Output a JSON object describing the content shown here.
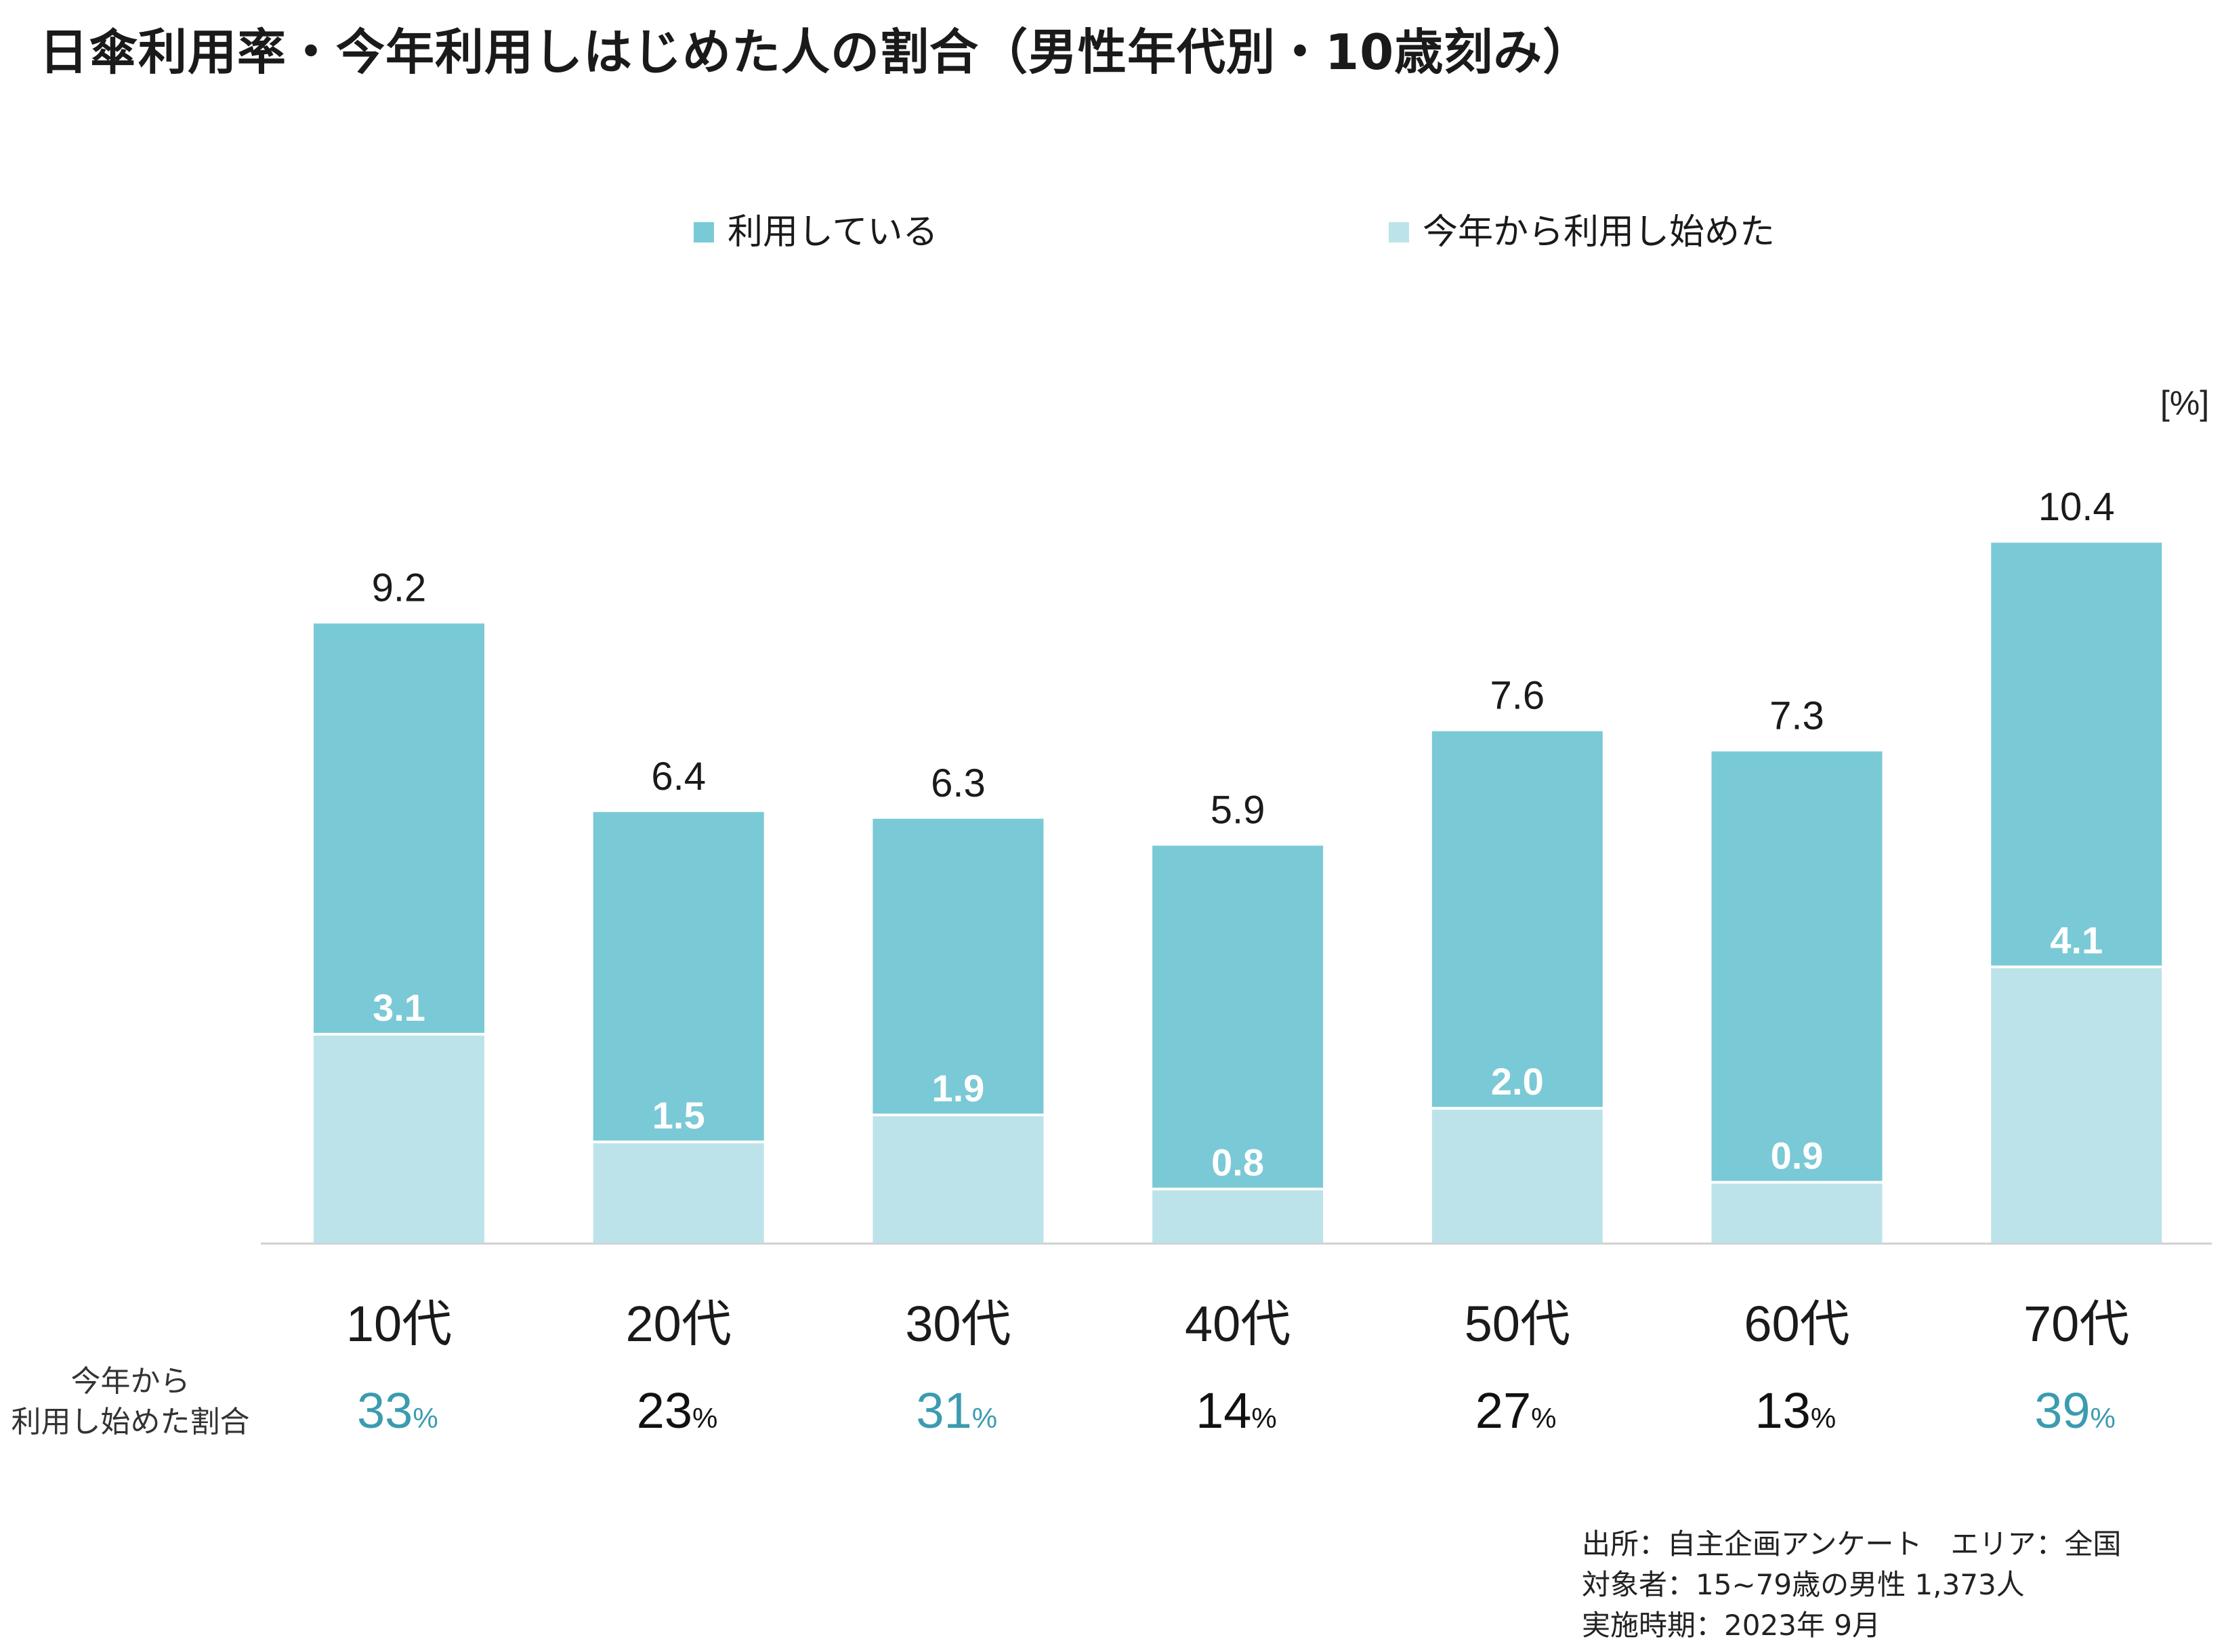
{
  "title": "日傘利用率・今年利用しはじめた人の割合（男性年代別・10歳刻み）",
  "unit_label": "[%]",
  "colors": {
    "using": "#7ac9d6",
    "started_this_year": "#bde3ea",
    "ratio_highlight": "#3b9bb0",
    "ratio_normal": "#111111",
    "axis": "#d0d0d0"
  },
  "legend": [
    {
      "label": "利用している",
      "color": "#7ac9d6"
    },
    {
      "label": "今年から利用し始めた",
      "color": "#bde3ea"
    }
  ],
  "chart_data": {
    "type": "bar",
    "categories": [
      "10代",
      "20代",
      "30代",
      "40代",
      "50代",
      "60代",
      "70代"
    ],
    "series": [
      {
        "name": "利用している",
        "values": [
          9.2,
          6.4,
          6.3,
          5.9,
          7.6,
          7.3,
          10.4
        ]
      },
      {
        "name": "今年から利用し始めた",
        "values": [
          3.1,
          1.5,
          1.9,
          0.8,
          2.0,
          0.9,
          4.1
        ]
      }
    ],
    "value_labels_total": [
      "9.2",
      "6.4",
      "6.3",
      "5.9",
      "7.6",
      "7.3",
      "10.4"
    ],
    "value_labels_started": [
      "3.1",
      "1.5",
      "1.9",
      "0.8",
      "2.0",
      "0.9",
      "4.1"
    ],
    "ylim": [
      0,
      10.4
    ],
    "grid": false,
    "legend_position": "top"
  },
  "ratio_row": {
    "label_line1": "今年から",
    "label_line2": "利用し始めた割合",
    "pct_symbol": "%",
    "items": [
      {
        "value": "33",
        "highlight": true
      },
      {
        "value": "23",
        "highlight": false
      },
      {
        "value": "31",
        "highlight": true
      },
      {
        "value": "14",
        "highlight": false
      },
      {
        "value": "27",
        "highlight": false
      },
      {
        "value": "13",
        "highlight": false
      },
      {
        "value": "39",
        "highlight": true
      }
    ]
  },
  "source": {
    "line1": "出所：自主企画アンケート　エリア：全国",
    "line2": "対象者：15~79歳の男性 1,373人",
    "line3": "実施時期：2023年 9月"
  }
}
